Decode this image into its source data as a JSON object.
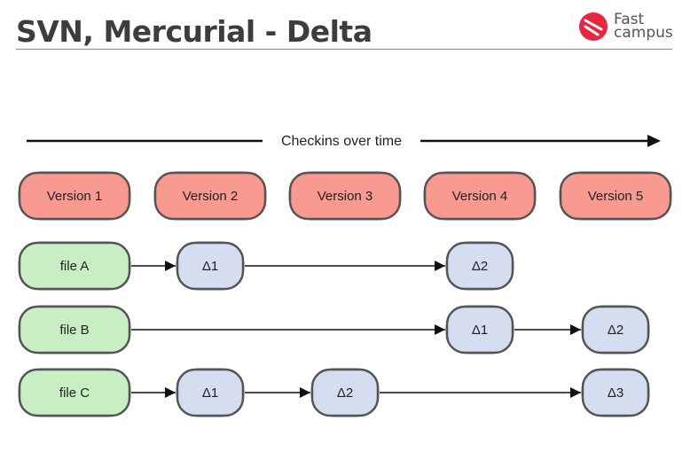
{
  "slide": {
    "title": "SVN, Mercurial - Delta"
  },
  "brand": {
    "line1": "Fast",
    "line2": "campus",
    "mark_color": "#e8263f",
    "text_color": "#555555"
  },
  "diagram": {
    "timeline_label": "Checkins over time",
    "versions": [
      "Version 1",
      "Version 2",
      "Version 3",
      "Version 4",
      "Version 5"
    ],
    "files": [
      {
        "label": "file A",
        "deltas": [
          {
            "label": "Δ1",
            "version_index": 1
          },
          {
            "label": "Δ2",
            "version_index": 3
          }
        ]
      },
      {
        "label": "file B",
        "deltas": [
          {
            "label": "Δ1",
            "version_index": 3
          },
          {
            "label": "Δ2",
            "version_index": 4
          }
        ]
      },
      {
        "label": "file C",
        "deltas": [
          {
            "label": "Δ1",
            "version_index": 1
          },
          {
            "label": "Δ2",
            "version_index": 2
          },
          {
            "label": "Δ3",
            "version_index": 4
          }
        ]
      }
    ],
    "colors": {
      "version_fill": "#f99a91",
      "file_fill": "#c8efc4",
      "delta_fill": "#d5def0",
      "box_stroke": "#555555",
      "box_outer": "#c6c6c6",
      "line": "#111111",
      "text": "#222222"
    }
  }
}
